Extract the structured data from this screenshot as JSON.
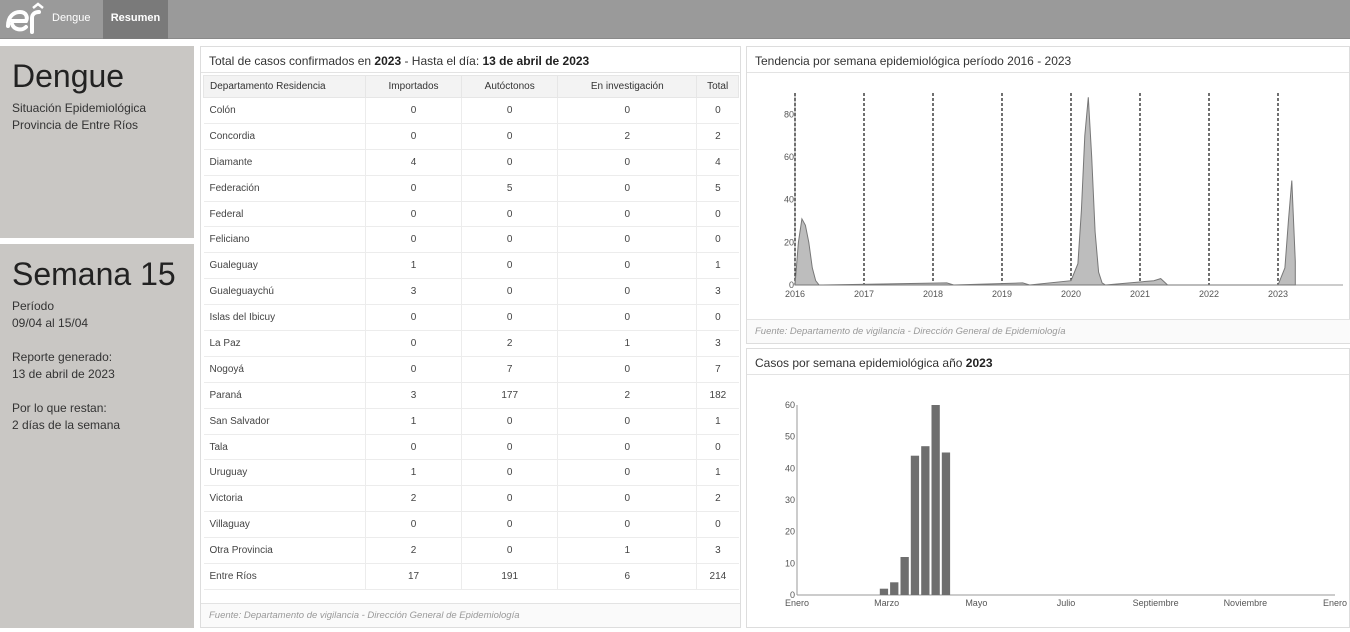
{
  "nav": {
    "dengue": "Dengue",
    "resumen": "Resumen"
  },
  "info1": {
    "title": "Dengue",
    "line1": "Situación Epidemiológica",
    "line2": "Provincia de Entre Ríos"
  },
  "info2": {
    "title": "Semana 15",
    "periodo_label": "Período",
    "periodo_value": "09/04 al 15/04",
    "reporte_label": "Reporte generado:",
    "reporte_value": "13 de abril de 2023",
    "restan_label": "Por lo que restan:",
    "restan_value": "2 días de la semana"
  },
  "table_panel": {
    "title_a": "Total de casos confirmados en ",
    "title_year": "2023",
    "title_b": " - Hasta el día: ",
    "title_date": "13 de abril de 2023",
    "headers": [
      "Departamento Residencia",
      "Importados",
      "Autóctonos",
      "En investigación",
      "Total"
    ],
    "rows": [
      [
        "Colón",
        "0",
        "0",
        "0",
        "0"
      ],
      [
        "Concordia",
        "0",
        "0",
        "2",
        "2"
      ],
      [
        "Diamante",
        "4",
        "0",
        "0",
        "4"
      ],
      [
        "Federación",
        "0",
        "5",
        "0",
        "5"
      ],
      [
        "Federal",
        "0",
        "0",
        "0",
        "0"
      ],
      [
        "Feliciano",
        "0",
        "0",
        "0",
        "0"
      ],
      [
        "Gualeguay",
        "1",
        "0",
        "0",
        "1"
      ],
      [
        "Gualeguaychú",
        "3",
        "0",
        "0",
        "3"
      ],
      [
        "Islas del Ibicuy",
        "0",
        "0",
        "0",
        "0"
      ],
      [
        "La Paz",
        "0",
        "2",
        "1",
        "3"
      ],
      [
        "Nogoyá",
        "0",
        "7",
        "0",
        "7"
      ],
      [
        "Paraná",
        "3",
        "177",
        "2",
        "182"
      ],
      [
        "San Salvador",
        "1",
        "0",
        "0",
        "1"
      ],
      [
        "Tala",
        "0",
        "0",
        "0",
        "0"
      ],
      [
        "Uruguay",
        "1",
        "0",
        "0",
        "1"
      ],
      [
        "Victoria",
        "2",
        "0",
        "0",
        "2"
      ],
      [
        "Villaguay",
        "0",
        "0",
        "0",
        "0"
      ],
      [
        "Otra Provincia",
        "2",
        "0",
        "1",
        "3"
      ],
      [
        "Entre Ríos",
        "17",
        "191",
        "6",
        "214"
      ]
    ],
    "footer": "Fuente: Departamento de vigilancia - Dirección General de Epidemiología"
  },
  "chart_data": [
    {
      "type": "area",
      "title": "Tendencia por semana epidemiológica período 2016 - 2023",
      "xlabel": "",
      "ylabel": "",
      "ylim": [
        0,
        90
      ],
      "yticks": [
        0,
        20,
        40,
        60,
        80
      ],
      "x_ticks": [
        "2016",
        "2017",
        "2018",
        "2019",
        "2020",
        "2021",
        "2022",
        "2023"
      ],
      "series": [
        {
          "x": [
            2016.0,
            2016.05,
            2016.1,
            2016.15,
            2016.2,
            2016.25,
            2016.3,
            2016.35,
            2016.4,
            2018.2,
            2018.3,
            2019.3,
            2019.4,
            2020.0,
            2020.1,
            2020.15,
            2020.2,
            2020.25,
            2020.3,
            2020.35,
            2020.4,
            2020.45,
            2020.5,
            2021.2,
            2021.3,
            2021.4,
            2023.0,
            2023.1,
            2023.15,
            2023.2,
            2023.25
          ],
          "y": [
            0,
            20,
            31,
            28,
            20,
            8,
            2,
            0,
            0,
            1,
            0,
            1,
            0,
            2,
            10,
            35,
            70,
            88,
            60,
            25,
            6,
            1,
            0,
            2,
            3,
            0,
            0,
            8,
            30,
            49,
            11
          ]
        }
      ],
      "footer": "Fuente: Departamento de vigilancia - Dirección General de Epidemiología"
    },
    {
      "type": "bar",
      "title_a": "Casos por semana epidemiológica año ",
      "title_year": "2023",
      "xlabel": "",
      "ylabel": "",
      "ylim": [
        0,
        60
      ],
      "yticks": [
        0,
        10,
        20,
        30,
        40,
        50,
        60
      ],
      "x_ticks": [
        "Enero",
        "Marzo",
        "Mayo",
        "Julio",
        "Septiembre",
        "Noviembre",
        "Enero"
      ],
      "weeks": [
        9,
        10,
        11,
        12,
        13,
        14,
        15
      ],
      "values": [
        2,
        4,
        12,
        44,
        47,
        60,
        45
      ]
    }
  ]
}
